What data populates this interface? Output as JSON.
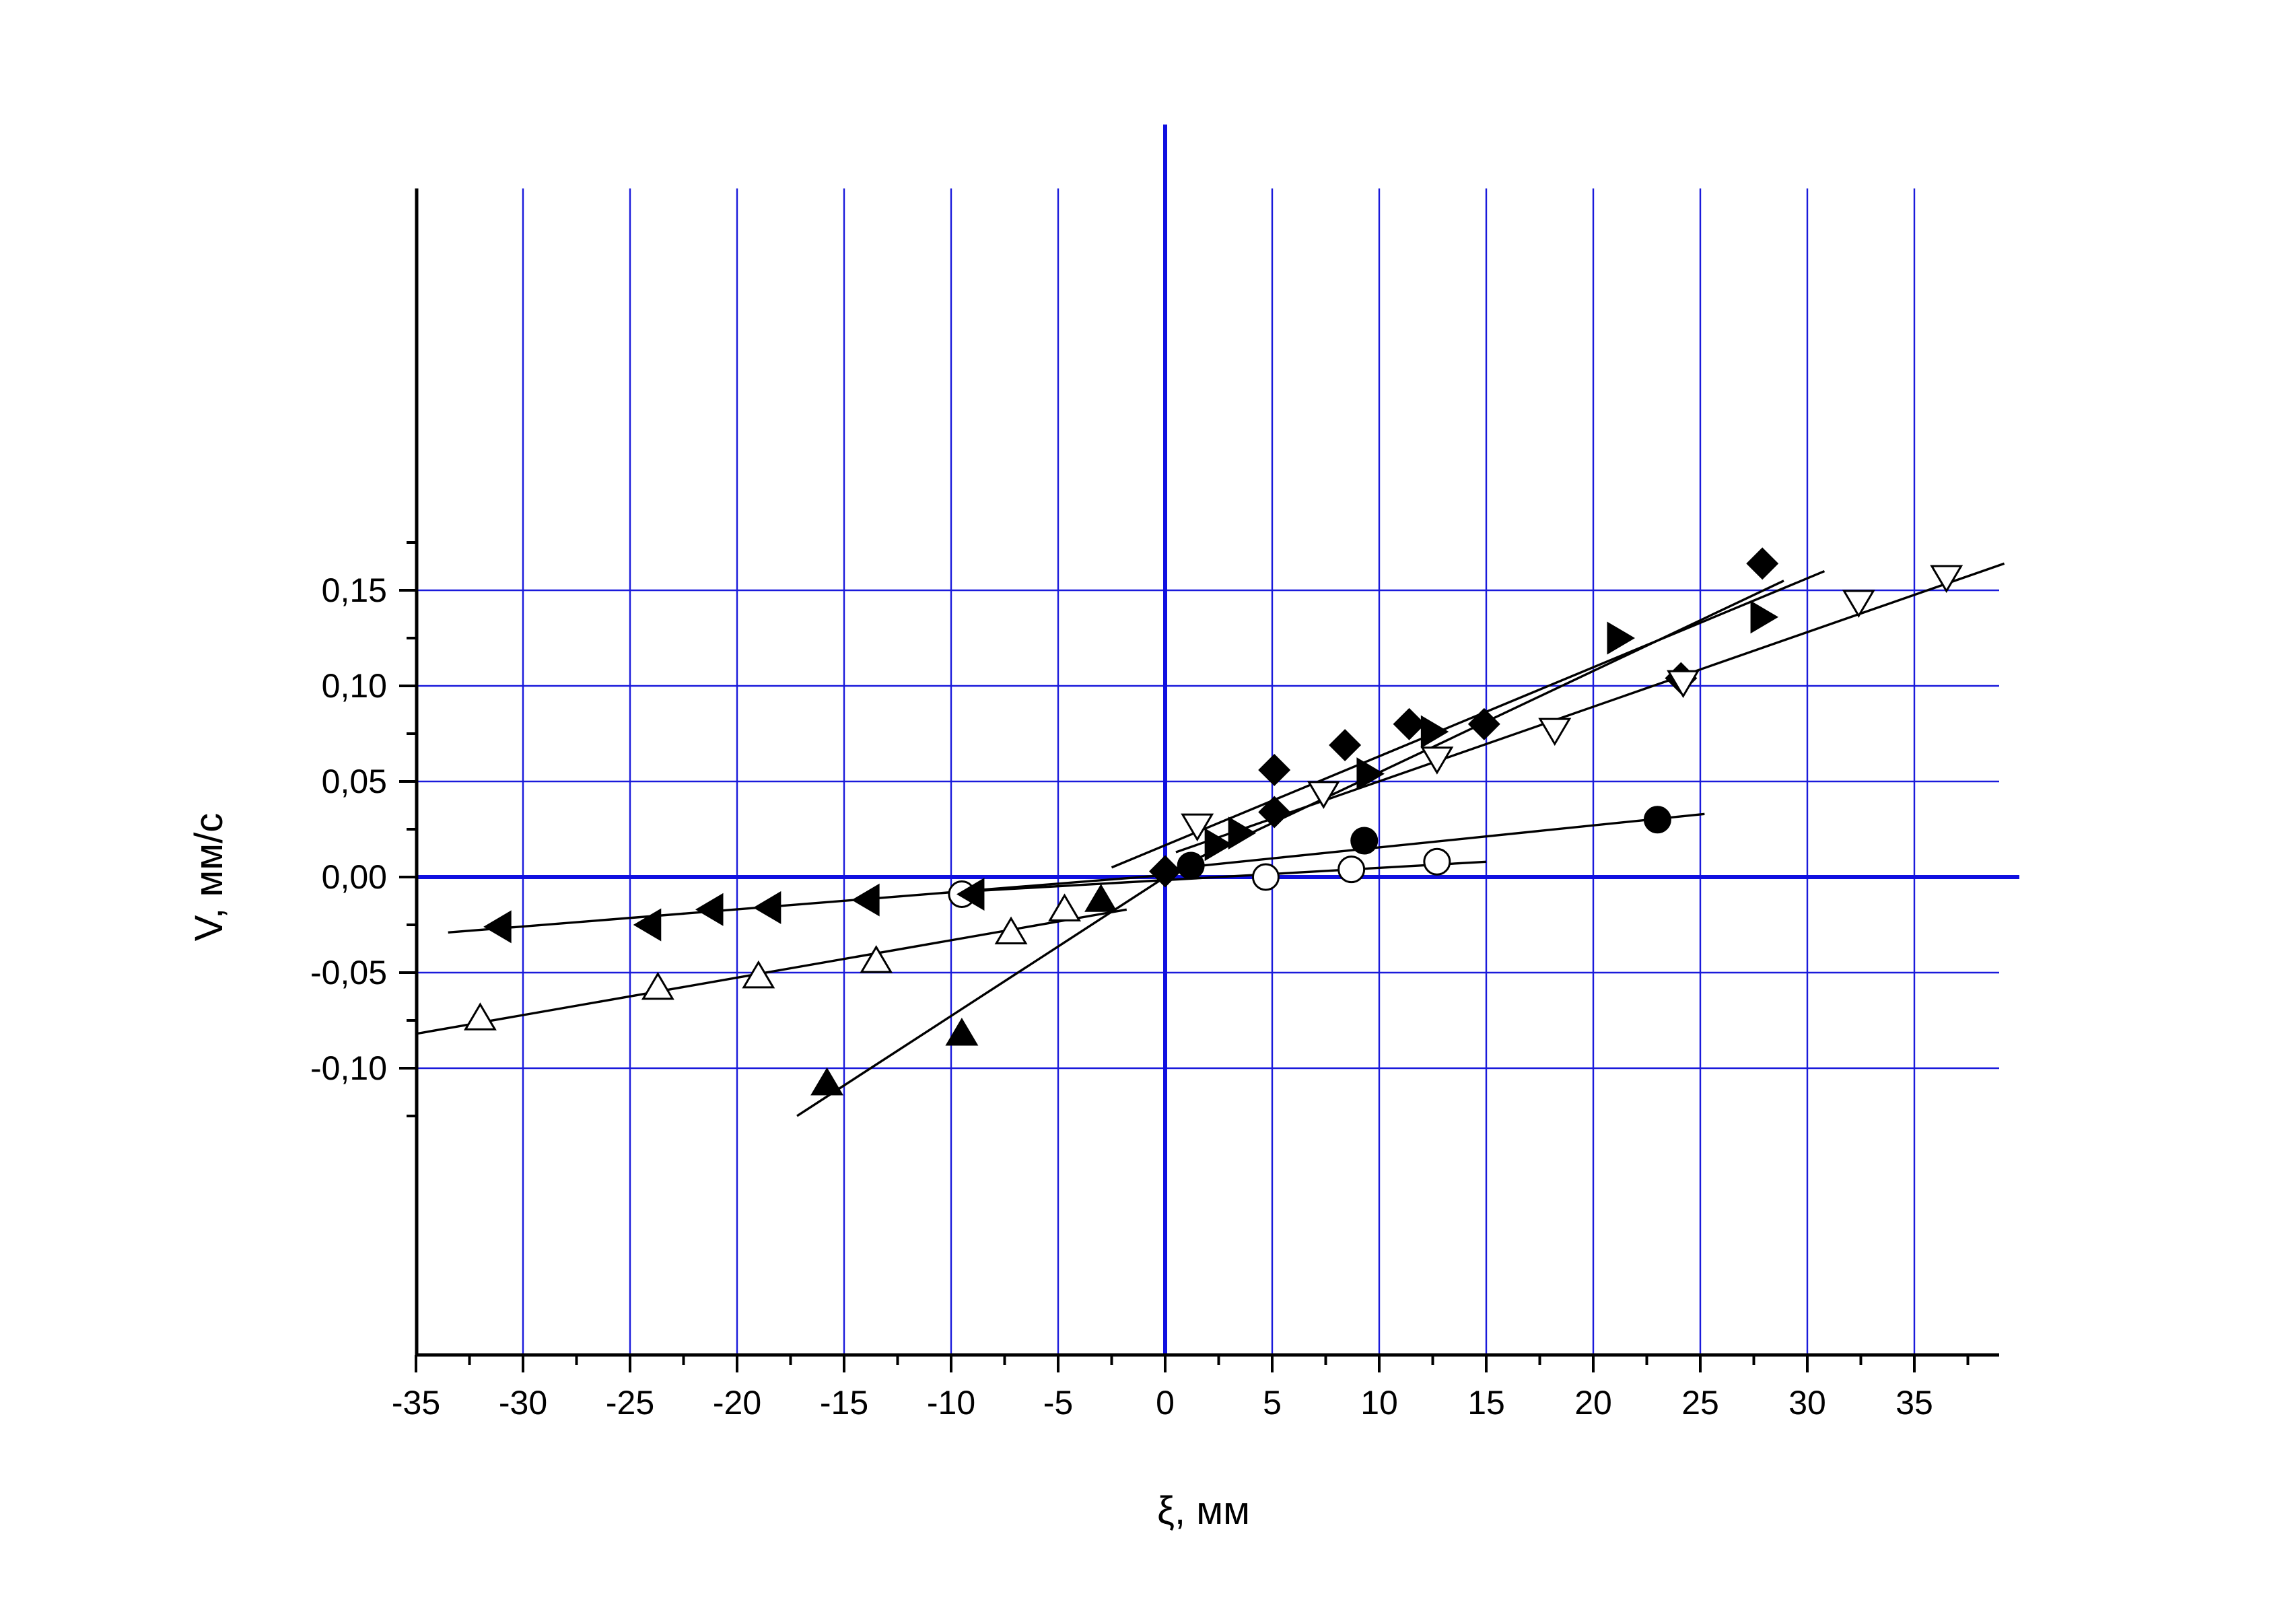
{
  "chart_data": {
    "type": "scatter",
    "title": "",
    "xlabel": "ξ, мм",
    "ylabel": "V, мм/с",
    "xlim": [
      -35,
      39.2
    ],
    "ylim": [
      -0.125,
      0.18
    ],
    "grid": true,
    "x_ticks": [
      -35,
      -30,
      -25,
      -20,
      -15,
      -10,
      -5,
      0,
      5,
      10,
      15,
      20,
      25,
      30,
      35
    ],
    "x_tick_labels": [
      "-35",
      "-30",
      "-25",
      "-20",
      "-15",
      "-10",
      "-5",
      "0",
      "5",
      "10",
      "15",
      "20",
      "25",
      "30",
      "35"
    ],
    "y_ticks": [
      -0.1,
      -0.05,
      0.0,
      0.05,
      0.1,
      0.15
    ],
    "y_tick_labels": [
      "-0,10",
      "-0,05",
      "0,00",
      "0,05",
      "0,10",
      "0,15"
    ],
    "colors": {
      "grid": "#1a1adb",
      "zero_axis": "#1010e0",
      "marker": "#000000",
      "fit_line": "#000000"
    },
    "series": [
      {
        "marker": "diamond-filled",
        "points": [
          [
            0,
            0.003
          ],
          [
            5.1,
            0.034
          ],
          [
            5.1,
            0.056
          ],
          [
            8.4,
            0.069
          ],
          [
            11.4,
            0.08
          ],
          [
            14.9,
            0.08
          ],
          [
            24.1,
            0.104
          ],
          [
            27.9,
            0.164
          ]
        ],
        "fit": [
          [
            -2.5,
            0.005
          ],
          [
            30.8,
            0.16
          ]
        ]
      },
      {
        "marker": "triangle-right-filled",
        "points": [
          [
            2.4,
            0.017
          ],
          [
            3.5,
            0.023
          ],
          [
            9.5,
            0.054
          ],
          [
            12.5,
            0.076
          ],
          [
            21.2,
            0.125
          ],
          [
            27.9,
            0.136
          ]
        ],
        "fit": [
          [
            1.0,
            0.007
          ],
          [
            28.9,
            0.155
          ]
        ]
      },
      {
        "marker": "triangle-down-open",
        "points": [
          [
            1.5,
            0.027
          ],
          [
            7.4,
            0.044
          ],
          [
            12.7,
            0.062
          ],
          [
            18.2,
            0.077
          ],
          [
            24.2,
            0.102
          ],
          [
            32.4,
            0.144
          ],
          [
            36.5,
            0.157
          ]
        ],
        "fit": [
          [
            0.5,
            0.013
          ],
          [
            39.2,
            0.164
          ]
        ]
      },
      {
        "marker": "circle-filled",
        "points": [
          [
            1.2,
            0.006
          ],
          [
            9.3,
            0.019
          ],
          [
            23.0,
            0.03
          ]
        ],
        "fit": [
          [
            0.0,
            0.004
          ],
          [
            25.2,
            0.033
          ]
        ]
      },
      {
        "marker": "circle-open",
        "points": [
          [
            -9.5,
            -0.009
          ],
          [
            4.7,
            0.0
          ],
          [
            8.7,
            0.004
          ],
          [
            12.7,
            0.008
          ]
        ],
        "fit": [
          [
            -10,
            -0.008
          ],
          [
            15,
            0.008
          ]
        ]
      },
      {
        "marker": "triangle-left-filled",
        "points": [
          [
            -31.1,
            -0.026
          ],
          [
            -24.1,
            -0.025
          ],
          [
            -21.2,
            -0.017
          ],
          [
            -18.5,
            -0.016
          ],
          [
            -13.9,
            -0.012
          ],
          [
            -9.0,
            -0.009
          ]
        ],
        "fit": [
          [
            -33.5,
            -0.029
          ],
          [
            0.0,
            0.001
          ]
        ]
      },
      {
        "marker": "triangle-up-open",
        "points": [
          [
            -32.0,
            -0.074
          ],
          [
            -23.7,
            -0.058
          ],
          [
            -19.0,
            -0.052
          ],
          [
            -13.5,
            -0.044
          ],
          [
            -7.2,
            -0.029
          ],
          [
            -4.7,
            -0.017
          ]
        ],
        "fit": [
          [
            -35,
            -0.082
          ],
          [
            -1.8,
            -0.017
          ]
        ]
      },
      {
        "marker": "triangle-up-filled",
        "points": [
          [
            -15.8,
            -0.108
          ],
          [
            -9.5,
            -0.082
          ],
          [
            -3.0,
            -0.012
          ]
        ],
        "fit": [
          [
            -17.2,
            -0.125
          ],
          [
            0.0,
            0.0
          ]
        ]
      }
    ]
  }
}
